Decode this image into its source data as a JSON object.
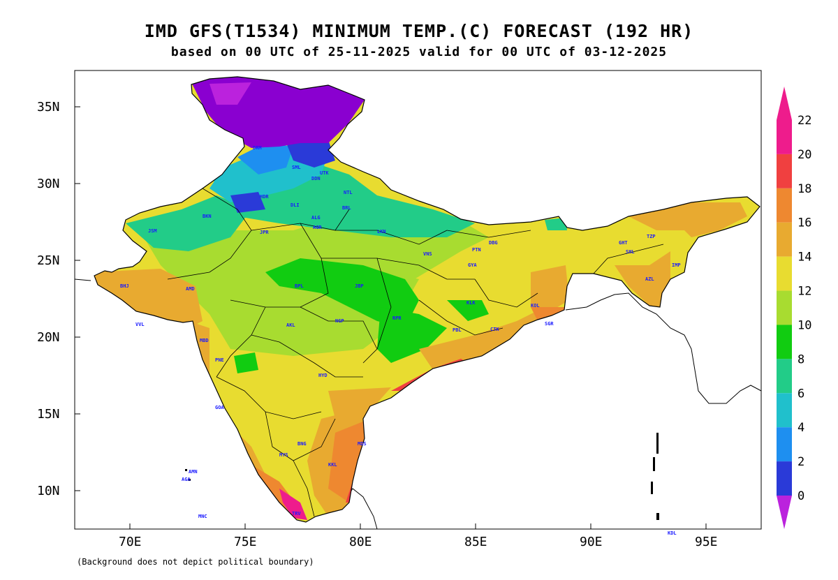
{
  "title": "IMD GFS(T1534) MINIMUM TEMP.(C) FORECAST (192 HR)",
  "subtitle": "based on 00 UTC of 25-11-2025 valid for 00 UTC of 03-12-2025",
  "footnote": "(Background does not depict political boundary)",
  "axes": {
    "x_ticks": [
      "70E",
      "75E",
      "80E",
      "85E",
      "90E",
      "95E"
    ],
    "y_ticks": [
      "35N",
      "30N",
      "25N",
      "20N",
      "15N",
      "10N"
    ]
  },
  "colorbar": {
    "labels": [
      "0",
      "2",
      "4",
      "6",
      "8",
      "10",
      "12",
      "14",
      "16",
      "18",
      "20",
      "22"
    ],
    "colors": [
      "#8a00d0",
      "#2a3ad8",
      "#1e8ff0",
      "#20c0cc",
      "#22cc88",
      "#11cc11",
      "#a8dc30",
      "#e8dc30",
      "#e8aa30",
      "#ee8830",
      "#f04040",
      "#ee1c8c"
    ],
    "below_color": "#bb22dd",
    "above_color": "#ee1c8c"
  },
  "stations": [
    {
      "code": "DRM"
    },
    {
      "code": "SML"
    },
    {
      "code": "UTK"
    },
    {
      "code": "DDN"
    },
    {
      "code": "HDR"
    },
    {
      "code": "NTL"
    },
    {
      "code": "BRL"
    },
    {
      "code": "DLI"
    },
    {
      "code": "ALG"
    },
    {
      "code": "AGR"
    },
    {
      "code": "BKN"
    },
    {
      "code": "JPR"
    },
    {
      "code": "JSM"
    },
    {
      "code": "LKN"
    },
    {
      "code": "PTN"
    },
    {
      "code": "GYA"
    },
    {
      "code": "VNS"
    },
    {
      "code": "BPL"
    },
    {
      "code": "JBP"
    },
    {
      "code": "NGP"
    },
    {
      "code": "RPR"
    },
    {
      "code": "KLK"
    },
    {
      "code": "BHJ"
    },
    {
      "code": "AMD"
    },
    {
      "code": "VVL"
    },
    {
      "code": "MBD"
    },
    {
      "code": "PNE"
    },
    {
      "code": "AKL"
    },
    {
      "code": "HYD"
    },
    {
      "code": "GOA"
    },
    {
      "code": "BNG"
    },
    {
      "code": "MDS"
    },
    {
      "code": "MYS"
    },
    {
      "code": "KKL"
    },
    {
      "code": "CTK"
    },
    {
      "code": "KOL"
    },
    {
      "code": "SGR"
    },
    {
      "code": "GHT"
    },
    {
      "code": "SHL"
    },
    {
      "code": "IMP"
    },
    {
      "code": "AZL"
    },
    {
      "code": "TZP"
    },
    {
      "code": "DBG"
    },
    {
      "code": "TRV"
    },
    {
      "code": "MNC"
    },
    {
      "code": "KDL"
    },
    {
      "code": "PBL"
    },
    {
      "code": "AGA"
    },
    {
      "code": "AMN"
    }
  ]
}
